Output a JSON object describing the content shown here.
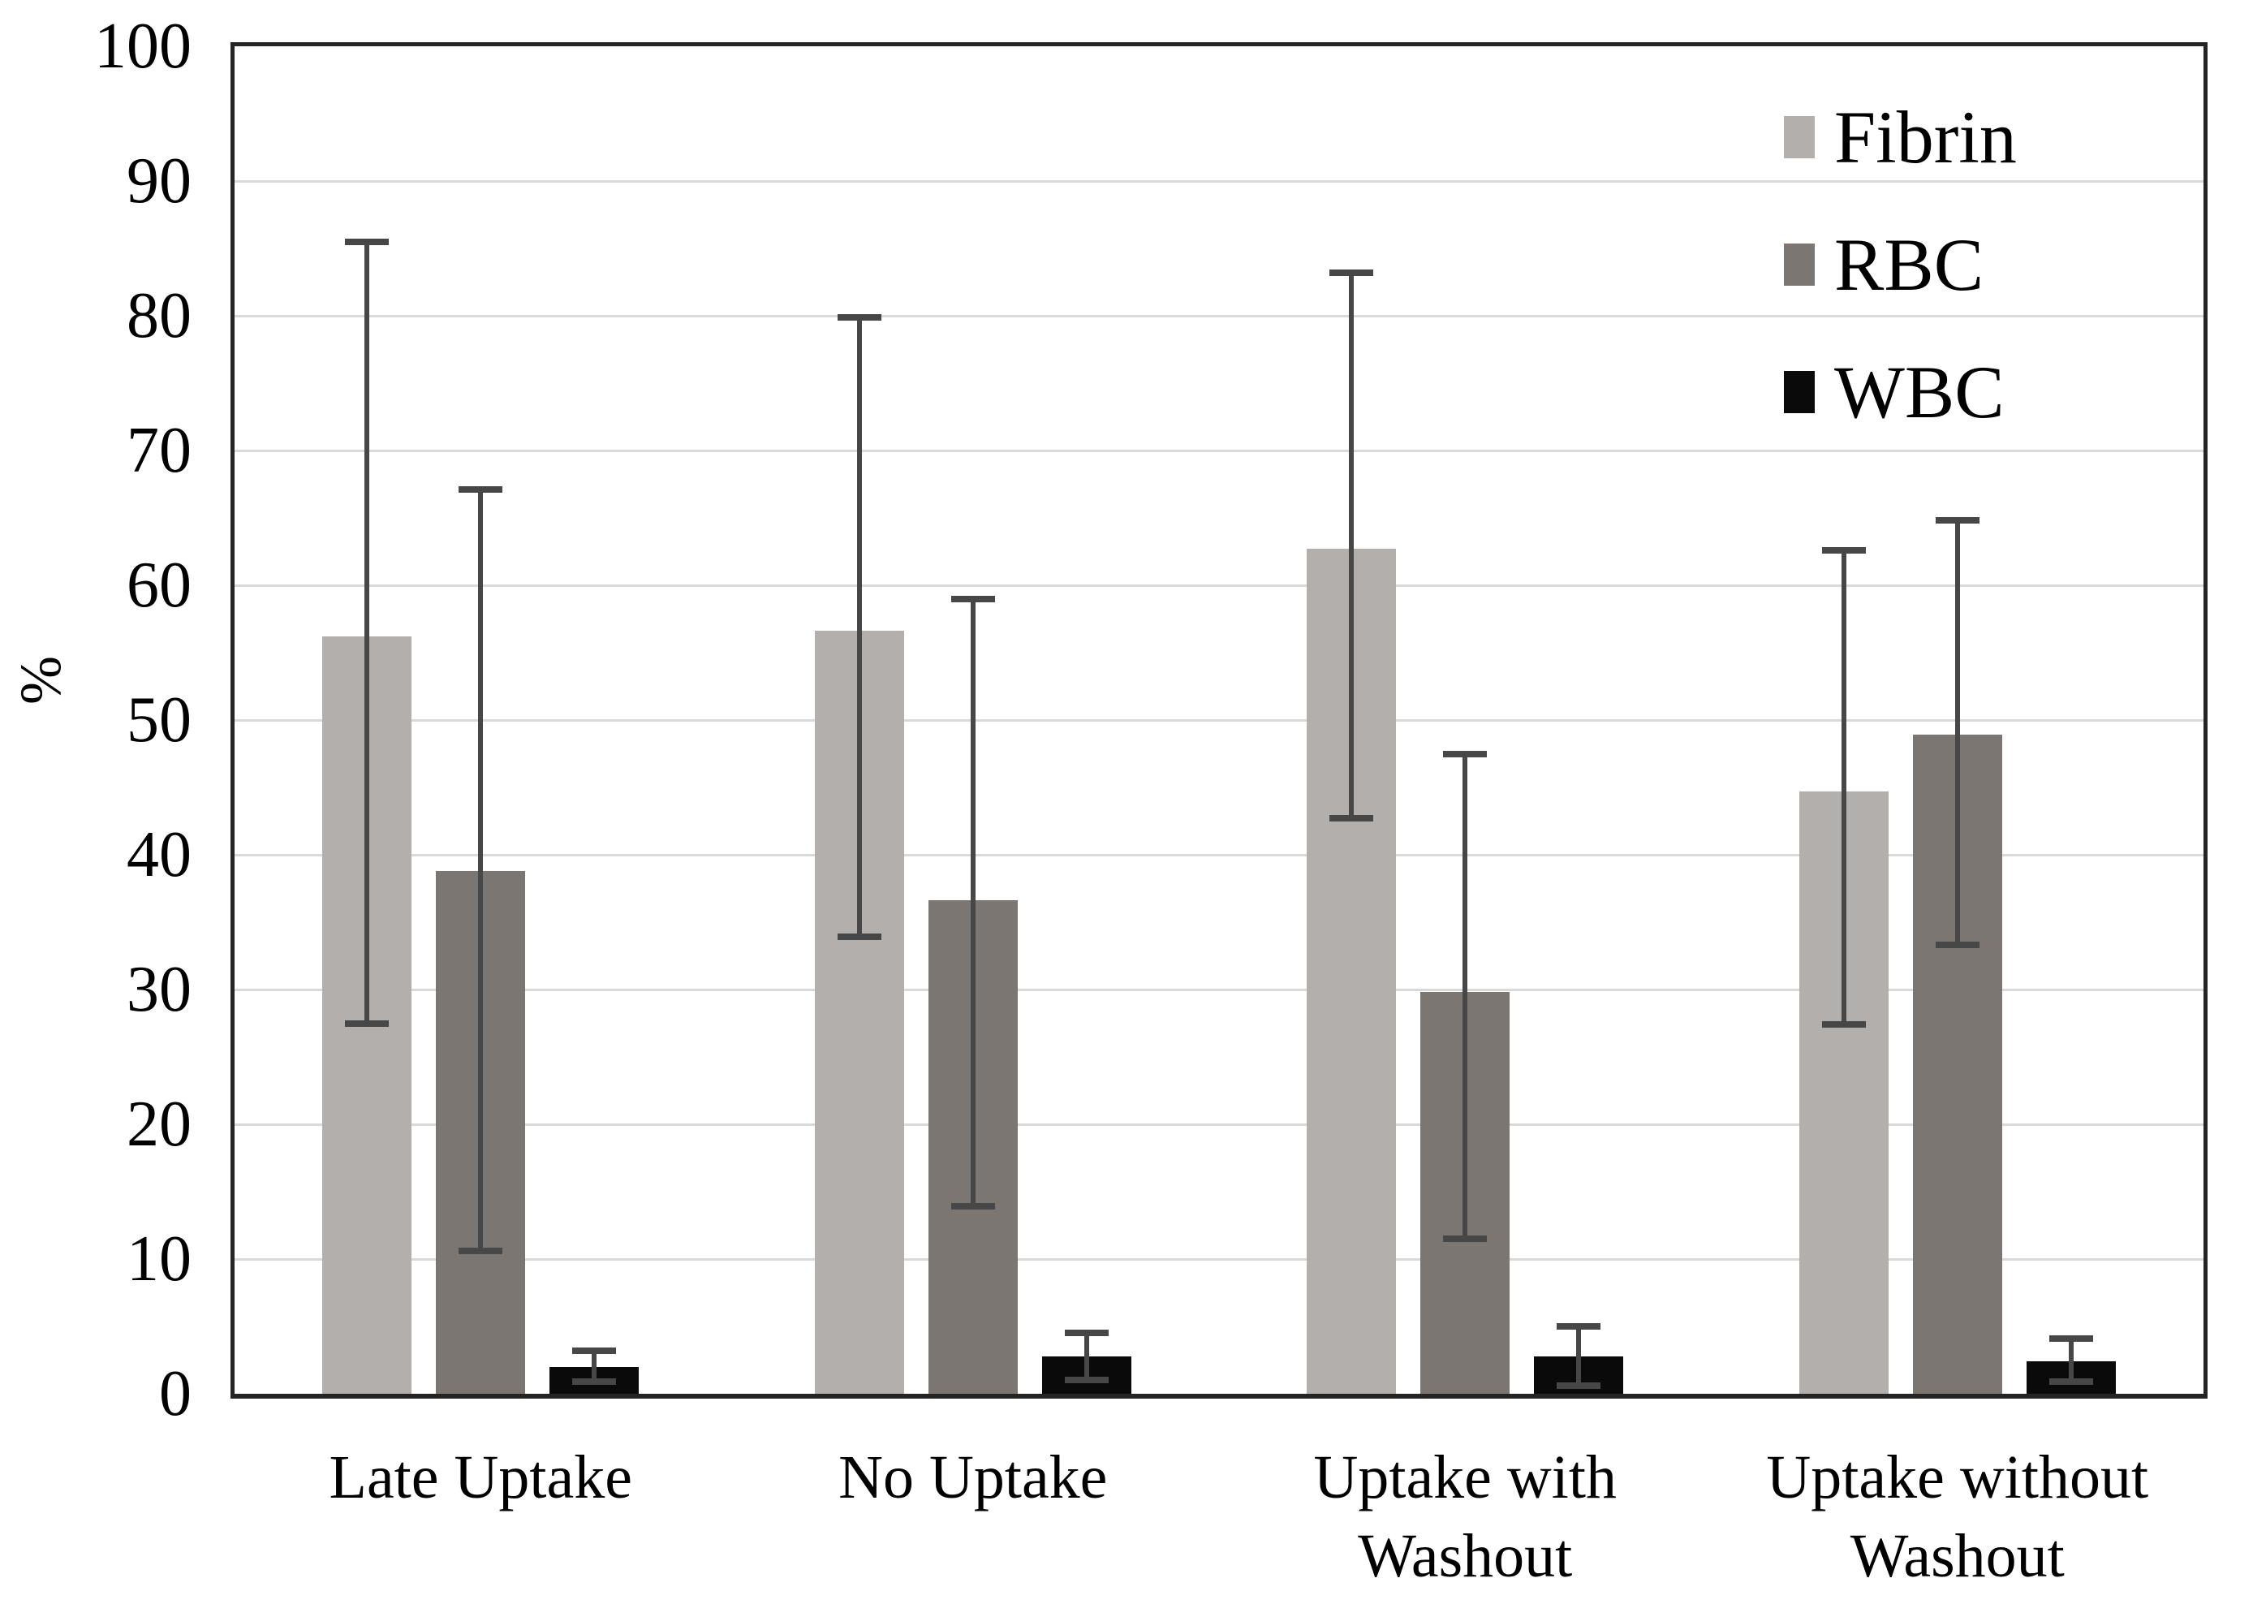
{
  "chart_data": {
    "type": "bar",
    "title": "",
    "ylabel": "%",
    "ylim": [
      0,
      100
    ],
    "yticks": [
      0,
      10,
      20,
      30,
      40,
      50,
      60,
      70,
      80,
      90,
      100
    ],
    "grid": true,
    "legend_position": "top-right",
    "legend_entries": [
      "Fibrin",
      "RBC",
      "WBC"
    ],
    "categories": [
      "Late Uptake",
      "No Uptake",
      "Uptake with Washout",
      "Uptake without Washout"
    ],
    "category_label_lines": [
      [
        "Late Uptake"
      ],
      [
        "No Uptake"
      ],
      [
        "Uptake with",
        "Washout"
      ],
      [
        "Uptake without",
        "Washout"
      ]
    ],
    "series": [
      {
        "name": "Fibrin",
        "color": "#b3afac",
        "values": [
          56.2,
          56.6,
          62.7,
          44.7
        ],
        "err_low": [
          27.5,
          33.9,
          42.7,
          27.4
        ],
        "err_high": [
          85.5,
          79.9,
          83.2,
          62.6
        ]
      },
      {
        "name": "RBC",
        "color": "#7c7672",
        "values": [
          38.8,
          36.6,
          29.8,
          48.9
        ],
        "err_low": [
          10.6,
          13.9,
          11.5,
          33.3
        ],
        "err_high": [
          67.1,
          59.0,
          47.5,
          64.8
        ]
      },
      {
        "name": "WBC",
        "color": "#0a0a0a",
        "values": [
          2.0,
          2.8,
          2.8,
          2.4
        ],
        "err_low": [
          0.9,
          1.0,
          0.6,
          0.9
        ],
        "err_high": [
          3.2,
          4.5,
          5.0,
          4.1
        ]
      }
    ],
    "error_bar_color": "#474747",
    "gridline_color": "#d9d9d9",
    "axis_border_color": "#242424",
    "text_color": "#000000",
    "background_color": "#ffffff"
  }
}
